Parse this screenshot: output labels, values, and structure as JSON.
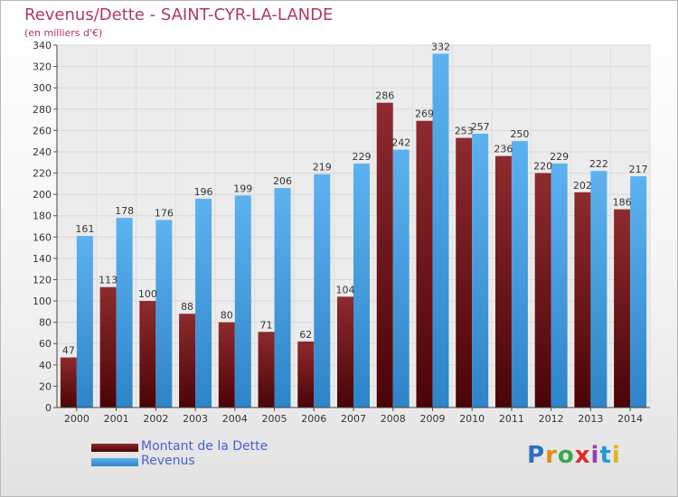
{
  "title": "Revenus/Dette - SAINT-CYR-LA-LANDE",
  "subtitle": "(en milliers d'€)",
  "logo_text": "Proxiti",
  "colors": {
    "dette": "#7a1a1e",
    "dette_dark": "#4e0608",
    "revenus": "#55aaea",
    "revenus_dark": "#2a7fc4",
    "title": "#b03a5b",
    "legend_text": "#4a5fd0"
  },
  "chart_data": {
    "type": "bar",
    "title": "Revenus/Dette - SAINT-CYR-LA-LANDE",
    "ylabel": "(en milliers d'€)",
    "xlabel": "",
    "ylim": [
      0,
      340
    ],
    "ytick_step": 20,
    "grid": true,
    "legend_position": "bottom-left",
    "categories": [
      "2000",
      "2001",
      "2002",
      "2003",
      "2004",
      "2005",
      "2006",
      "2007",
      "2008",
      "2009",
      "2010",
      "2011",
      "2012",
      "2013",
      "2014"
    ],
    "series": [
      {
        "name": "Montant de la Dette",
        "values": [
          47,
          113,
          100,
          88,
          80,
          71,
          62,
          104,
          286,
          269,
          253,
          236,
          220,
          202,
          186
        ]
      },
      {
        "name": "Revenus",
        "values": [
          161,
          178,
          176,
          196,
          199,
          206,
          219,
          229,
          242,
          332,
          257,
          250,
          229,
          222,
          217
        ]
      }
    ]
  }
}
